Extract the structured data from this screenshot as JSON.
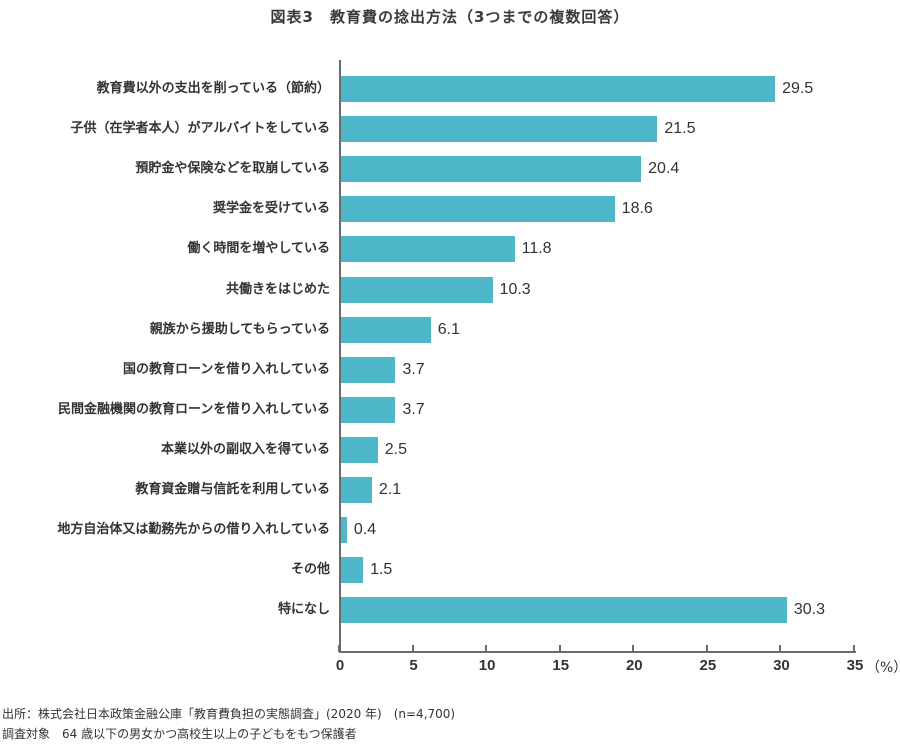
{
  "title": "図表3　教育費の捻出方法（3つまでの複数回答）",
  "chart_data": {
    "type": "bar",
    "orientation": "horizontal",
    "title": "図表3　教育費の捻出方法（3つまでの複数回答）",
    "xlabel": "(%)",
    "ylabel": "",
    "xlim": [
      0,
      35
    ],
    "xticks": [
      0,
      5,
      10,
      15,
      20,
      25,
      30,
      35
    ],
    "grid": false,
    "legend": null,
    "bar_color": "#4db6c9",
    "categories": [
      "教育費以外の支出を削っている（節約）",
      "子供（在学者本人）がアルバイトをしている",
      "預貯金や保険などを取崩している",
      "奨学金を受けている",
      "働く時間を増やしている",
      "共働きをはじめた",
      "親族から援助してもらっている",
      "国の教育ローンを借り入れしている",
      "民間金融機関の教育ローンを借り入れしている",
      "本業以外の副収入を得ている",
      "教育資金贈与信託を利用している",
      "地方自治体又は勤務先からの借り入れしている",
      "その他",
      "特になし"
    ],
    "values": [
      29.5,
      21.5,
      20.4,
      18.6,
      11.8,
      10.3,
      6.1,
      3.7,
      3.7,
      2.5,
      2.1,
      0.4,
      1.5,
      30.3
    ],
    "value_labels": [
      "29.5",
      "21.5",
      "20.4",
      "18.6",
      "11.8",
      "10.3",
      "6.1",
      "3.7",
      "3.7",
      "2.5",
      "2.1",
      "0.4",
      "1.5",
      "30.3"
    ]
  },
  "axis": {
    "ticks": [
      "0",
      "5",
      "10",
      "15",
      "20",
      "25",
      "30",
      "35"
    ],
    "unit": "（%）"
  },
  "footnotes": {
    "source": "出所：株式会社日本政策金融公庫「教育費負担の実態調査」(2020 年)　(n=4,700)",
    "subject": "調査対象　64 歳以下の男女かつ高校生以上の子どもをもつ保護者"
  }
}
